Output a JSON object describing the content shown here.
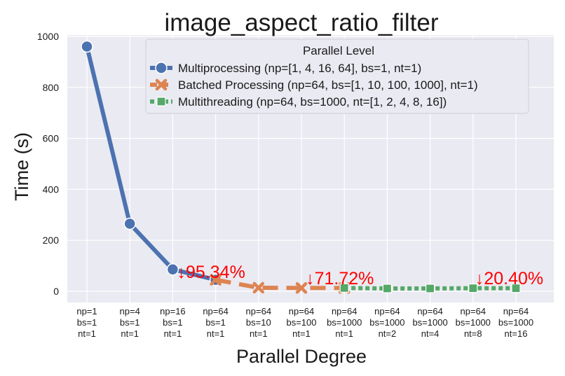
{
  "chart_data": {
    "type": "line",
    "title": "image_aspect_ratio_filter",
    "xlabel": "Parallel Degree",
    "ylabel": "Time (s)",
    "ylim": [
      0,
      1000
    ],
    "yticks": [
      0,
      200,
      400,
      600,
      800,
      1000
    ],
    "grid": true,
    "legend_title": "Parallel Level",
    "legend_position": "top-right",
    "categories": [
      [
        "np=1",
        "bs=1",
        "nt=1"
      ],
      [
        "np=4",
        "bs=1",
        "nt=1"
      ],
      [
        "np=16",
        "bs=1",
        "nt=1"
      ],
      [
        "np=64",
        "bs=1",
        "nt=1"
      ],
      [
        "np=64",
        "bs=10",
        "nt=1"
      ],
      [
        "np=64",
        "bs=100",
        "nt=1"
      ],
      [
        "np=64",
        "bs=1000",
        "nt=1"
      ],
      [
        "np=64",
        "bs=1000",
        "nt=2"
      ],
      [
        "np=64",
        "bs=1000",
        "nt=4"
      ],
      [
        "np=64",
        "bs=1000",
        "nt=8"
      ],
      [
        "np=64",
        "bs=1000",
        "nt=16"
      ]
    ],
    "series": [
      {
        "name": "Multiprocessing (np=[1, 4, 16, 64], bs=1, nt=1)",
        "color": "#4c72b0",
        "marker": "circle",
        "dash": "solid",
        "x": [
          0,
          1,
          2,
          3
        ],
        "values": [
          960,
          265,
          86,
          45
        ]
      },
      {
        "name": "Batched Processing (np=64, bs=[1, 10, 100, 1000], nt=1)",
        "color": "#dd8452",
        "marker": "x",
        "dash": "dashed",
        "x": [
          3,
          4,
          5,
          6
        ],
        "values": [
          45,
          14,
          13,
          13
        ]
      },
      {
        "name": "Multithreading (np=64, bs=1000, nt=[1, 2, 4, 8, 16])",
        "color": "#55a868",
        "marker": "square",
        "dash": "dotted",
        "x": [
          6,
          7,
          8,
          9,
          10
        ],
        "values": [
          13,
          11,
          11,
          12,
          12
        ]
      }
    ],
    "annotations": [
      {
        "text": "↓95.34%",
        "color": "#ff0000",
        "x": 2.1,
        "y": 55
      },
      {
        "text": "↓71.72%",
        "color": "#ff0000",
        "x": 5.1,
        "y": 30
      },
      {
        "text": "↓20.40%",
        "color": "#ff0000",
        "x": 9.05,
        "y": 30
      }
    ]
  }
}
